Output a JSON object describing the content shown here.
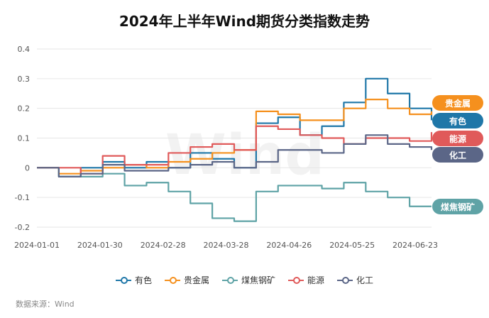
{
  "source": "数据来源：Wind",
  "watermark": "Wind",
  "colors": {
    "youse": "#1f77a8",
    "guijinshu": "#f5901e",
    "meijiao": "#5fa3a6",
    "nengyuan": "#e05a5a",
    "huagong": "#5b6687",
    "grid": "#e6e6e6",
    "axis_text": "#555555"
  },
  "chart_data": {
    "type": "line",
    "title": "2024年上半年Wind期货分类指数走势",
    "xlabel": "",
    "ylabel": "",
    "ylim": [
      -0.2,
      0.4
    ],
    "yticks": [
      "0.4",
      "0.3",
      "0.2",
      "0.1",
      "0",
      "-0.1",
      "-0.2"
    ],
    "ytick_values": [
      0.4,
      0.3,
      0.2,
      0.1,
      0,
      -0.1,
      -0.2
    ],
    "xticks": [
      "2024-01-01",
      "2024-01-30",
      "2024-02-28",
      "2024-03-28",
      "2024-04-26",
      "2024-05-25",
      "2024-06-23"
    ],
    "x_days": [
      0,
      10,
      20,
      30,
      40,
      50,
      60,
      70,
      80,
      90,
      100,
      110,
      120,
      130,
      140,
      150,
      160,
      170,
      180
    ],
    "series": [
      {
        "key": "youse",
        "name": "有色",
        "values": [
          0,
          -0.03,
          0.0,
          0.02,
          0.0,
          0.02,
          0.0,
          0.05,
          0.03,
          0.0,
          0.15,
          0.17,
          0.11,
          0.14,
          0.22,
          0.3,
          0.25,
          0.2,
          0.16
        ]
      },
      {
        "key": "guijinshu",
        "name": "贵金属",
        "values": [
          0,
          -0.02,
          -0.01,
          0.0,
          0.01,
          0.0,
          0.02,
          0.03,
          0.05,
          0.06,
          0.19,
          0.18,
          0.16,
          0.16,
          0.2,
          0.23,
          0.2,
          0.18,
          0.19
        ]
      },
      {
        "key": "meijiao",
        "name": "煤焦钢矿",
        "values": [
          0,
          -0.03,
          -0.03,
          -0.02,
          -0.06,
          -0.05,
          -0.08,
          -0.12,
          -0.17,
          -0.18,
          -0.08,
          -0.06,
          -0.06,
          -0.07,
          -0.05,
          -0.08,
          -0.1,
          -0.13,
          -0.13
        ]
      },
      {
        "key": "nengyuan",
        "name": "能源",
        "values": [
          0,
          0.0,
          -0.02,
          0.04,
          0.01,
          0.01,
          0.05,
          0.07,
          0.08,
          0.06,
          0.14,
          0.13,
          0.11,
          0.1,
          0.08,
          0.1,
          0.1,
          0.09,
          0.12
        ]
      },
      {
        "key": "huagong",
        "name": "化工",
        "values": [
          0,
          -0.03,
          -0.02,
          0.01,
          -0.01,
          -0.01,
          0.0,
          0.01,
          0.02,
          0.0,
          0.02,
          0.06,
          0.06,
          0.05,
          0.08,
          0.11,
          0.08,
          0.07,
          0.06
        ]
      }
    ]
  }
}
